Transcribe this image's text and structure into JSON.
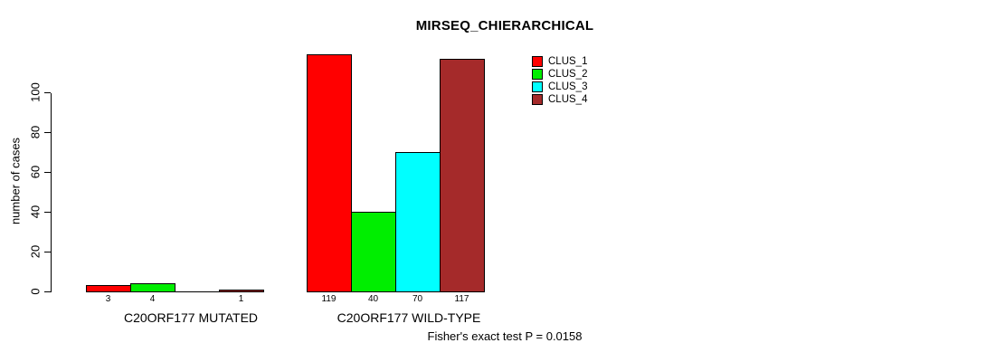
{
  "chart_data": {
    "type": "bar",
    "title": "MIRSEQ_CHIERARCHICAL",
    "ylabel": "number of cases",
    "xlabel": "",
    "ylim": [
      0,
      120
    ],
    "yticks": [
      0,
      20,
      40,
      60,
      80,
      100
    ],
    "grid": false,
    "background_color": "#ffffff",
    "axis_color": "#000000",
    "series_colors": [
      "#ff0000",
      "#00ee00",
      "#00ffff",
      "#a52a2a"
    ],
    "legend": {
      "position": "top-right",
      "entries": [
        {
          "label": "CLUS_1",
          "color": "#ff0000"
        },
        {
          "label": "CLUS_2",
          "color": "#00ee00"
        },
        {
          "label": "CLUS_3",
          "color": "#00ffff"
        },
        {
          "label": "CLUS_4",
          "color": "#a52a2a"
        }
      ]
    },
    "groups": [
      {
        "label": "C20ORF177 MUTATED",
        "values": [
          3,
          4,
          0,
          1
        ],
        "bar_labels": [
          "3",
          "4",
          "",
          "1"
        ]
      },
      {
        "label": "C20ORF177 WILD-TYPE",
        "values": [
          119,
          40,
          70,
          117
        ],
        "bar_labels": [
          "119",
          "40",
          "70",
          "117"
        ]
      }
    ],
    "annotation": "Fisher's exact test P = 0.0158"
  }
}
